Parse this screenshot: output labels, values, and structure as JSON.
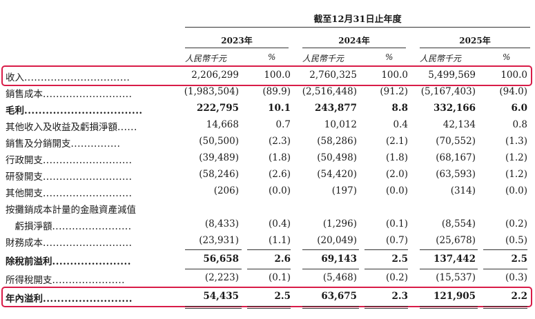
{
  "header": {
    "period": "截至12月31日止年度",
    "years": [
      "2023年",
      "2024年",
      "2025年"
    ],
    "unit": "人民幣千元",
    "pct": "%"
  },
  "rows": [
    {
      "label": "收入",
      "dots": "................................",
      "v": [
        "2,206,299",
        "100.0",
        "2,760,325",
        "100.0",
        "5,499,569",
        "100.0"
      ]
    },
    {
      "label": "銷售成本",
      "dots": "...........................",
      "v": [
        "(1,983,504)",
        "(89.9)",
        "(2,516,448)",
        "(91.2)",
        "(5,167,403)",
        "(94.0)"
      ]
    },
    {
      "label": "毛利",
      "dots": ".................................",
      "v": [
        "222,795",
        "10.1",
        "243,877",
        "8.8",
        "332,166",
        "6.0"
      ]
    },
    {
      "label": "其他收入及收益及虧損淨額",
      "dots": "......",
      "v": [
        "14,668",
        "0.7",
        "10,012",
        "0.4",
        "42,134",
        "0.8"
      ]
    },
    {
      "label": "銷售及分銷開支",
      "dots": "...............",
      "v": [
        "(50,500)",
        "(2.3)",
        "(58,286)",
        "(2.1)",
        "(70,552)",
        "(1.3)"
      ]
    },
    {
      "label": "行政開支",
      "dots": "...........................",
      "v": [
        "(39,489)",
        "(1.8)",
        "(50,498)",
        "(1.8)",
        "(68,167)",
        "(1.2)"
      ]
    },
    {
      "label": "研發開支",
      "dots": "...........................",
      "v": [
        "(58,246)",
        "(2.6)",
        "(54,420)",
        "(2.0)",
        "(63,593)",
        "(1.2)"
      ]
    },
    {
      "label": "其他開支",
      "dots": "...........................",
      "v": [
        "(206)",
        "(0.0)",
        "(197)",
        "(0.0)",
        "(314)",
        "(0.0)"
      ]
    },
    {
      "label": "按攤銷成本計量的金融資產減值",
      "dots": "",
      "v": [
        "",
        "",
        "",
        "",
        "",
        ""
      ]
    },
    {
      "label": "　虧損淨額",
      "dots": "........................",
      "v": [
        "(8,433)",
        "(0.4)",
        "(1,296)",
        "(0.1)",
        "(8,554)",
        "(0.2)"
      ]
    },
    {
      "label": "財務成本",
      "dots": "...........................",
      "v": [
        "(23,931)",
        "(1.1)",
        "(20,049)",
        "(0.7)",
        "(25,678)",
        "(0.5)"
      ]
    },
    {
      "label": "除稅前溢利",
      "dots": "......................",
      "v": [
        "56,658",
        "2.6",
        "69,143",
        "2.5",
        "137,442",
        "2.5"
      ]
    },
    {
      "label": "所得稅開支",
      "dots": "......................",
      "v": [
        "(2,223)",
        "(0.1)",
        "(5,468)",
        "(0.2)",
        "(15,537)",
        "(0.3)"
      ]
    },
    {
      "label": "年內溢利",
      "dots": ".........................",
      "v": [
        "54,435",
        "2.5",
        "63,675",
        "2.3",
        "121,905",
        "2.2"
      ]
    }
  ]
}
